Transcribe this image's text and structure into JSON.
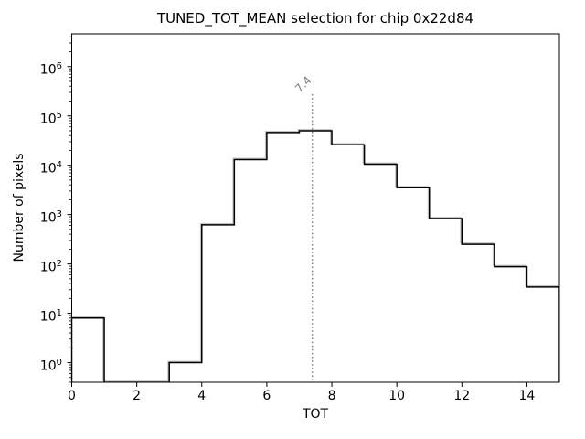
{
  "chart_data": {
    "type": "bar",
    "title": "TUNED_TOT_MEAN selection for chip 0x22d84",
    "xlabel": "TOT",
    "ylabel": "Number of pixels",
    "yscale": "log",
    "grid": false,
    "legend": null,
    "bin_edges": [
      0,
      1,
      2,
      3,
      4,
      5,
      6,
      7,
      8,
      9,
      10,
      11,
      12,
      13,
      14,
      15
    ],
    "counts": [
      8,
      0,
      0,
      1,
      620,
      13000,
      46000,
      50000,
      26000,
      10500,
      3500,
      830,
      250,
      88,
      34
    ],
    "xlim": [
      0,
      15
    ],
    "ylim": [
      0.4,
      4600000
    ],
    "xticks": [
      0,
      2,
      4,
      6,
      8,
      10,
      12,
      14
    ],
    "ytick_exponents": [
      0,
      1,
      2,
      3,
      4,
      5,
      6
    ],
    "vline": {
      "x": 7.4,
      "label": "7.4",
      "style": "dotted",
      "color": "#7f7f7f"
    },
    "colors": {
      "histogram_line": "#000000",
      "histogram_shadow": "#c2c2c2",
      "axes": "#000000",
      "annotation": "#7f7f7f"
    }
  }
}
